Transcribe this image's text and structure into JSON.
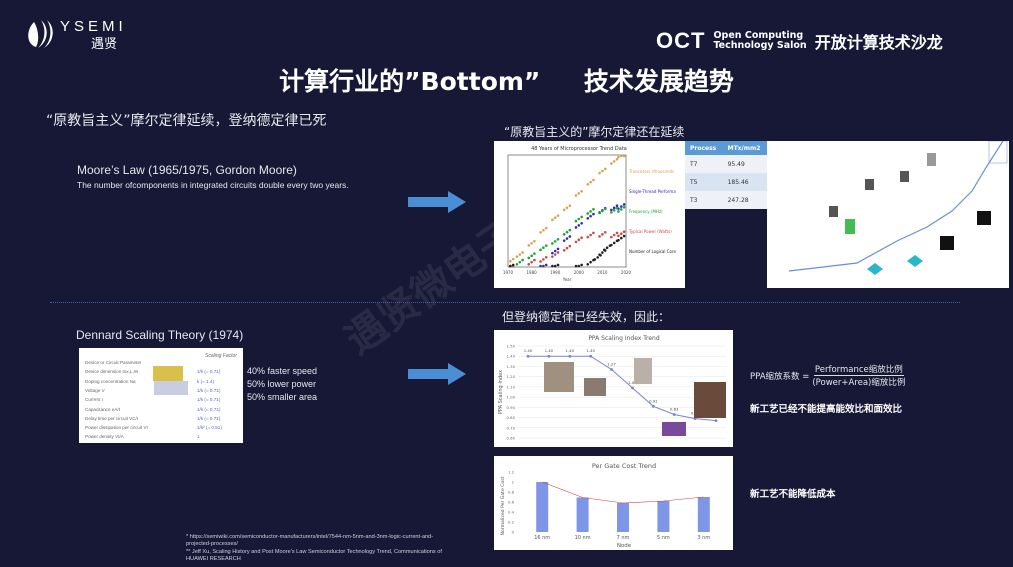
{
  "header": {
    "logo_brand": "YSEMI",
    "logo_cn": "遇贤",
    "oct_logo": "OCT",
    "oct_line1": "Open Computing",
    "oct_line2": "Technology Salon",
    "oct_cn": "开放计算技术沙龙"
  },
  "title": "计算行业的”Bottom”     技术发展趋势",
  "watermark": "遇贤微电子",
  "left": {
    "subtitle": "“原教旨主义”摩尔定律延续，登纳德定律已死",
    "moore_title": "Moore’s Law (1965/1975, Gordon Moore)",
    "moore_desc": "The number ofcomponents in integrated circuits double every two years.",
    "dennard_title": "Dennard Scaling Theory (1974)",
    "dennard_table": {
      "header": "Scaling Factor",
      "rows": [
        [
          "Device or Circuit Parameter",
          ""
        ],
        [
          "Device dimension tox,L,W",
          "1/k (= 0.71)"
        ],
        [
          "Doping concentration Na",
          "k (= 1.4)"
        ],
        [
          "Voltage V",
          "1/k (= 0.71)"
        ],
        [
          "Current I",
          "1/k (= 0.71)"
        ],
        [
          "Capacitance eA/t",
          "1/k (= 0.71)"
        ],
        [
          "Delay time per circuit VC/I",
          "1/k (= 0.71)"
        ],
        [
          "Power dissipation per circuit VI",
          "1/k² (= 0.51)"
        ],
        [
          "Power density VI/A",
          "1"
        ]
      ]
    },
    "benefits": [
      "40% faster speed",
      "50% lower power",
      "50% smaller area"
    ],
    "footnotes": [
      "* https://semiwiki.com/semiconductor-manufacturers/intel/7544-nm-5nm-and-3nm-logic-current-and-projected-processes/",
      "** Jeff Xu, Scaling History and Post Moore’s Law Semiconductor Technology Trend, Communications of HUAWEI RESEARCH"
    ]
  },
  "right": {
    "heading1": "“原教旨主义的”摩尔定律还在延续",
    "density_table": {
      "columns": [
        "Process",
        "MTx/mm2"
      ],
      "rows": [
        [
          "T7",
          "95.49"
        ],
        [
          "T5",
          "185.46"
        ],
        [
          "T3",
          "247.28"
        ]
      ]
    },
    "heading2": "但登纳德定律已经失效，因此：",
    "ppa_formula_left": "PPA缩放系数 =",
    "ppa_formula_num": "Performance缩放比例",
    "ppa_formula_den": "(Power+Area)缩放比例",
    "note1": "新工艺已经不能提高能效比和面效比",
    "note2": "新工艺不能降低成本"
  },
  "colors": {
    "background": "#171836",
    "arrow": "#4a8fd6",
    "table_header": "#5b9bd5",
    "bar": "#7f95e6",
    "ppa_line": "#7a80d8"
  },
  "chart_data": [
    {
      "type": "scatter",
      "title": "48 Years of Microprocessor Trend Data",
      "xlabel": "Year",
      "xlim": [
        1970,
        2020
      ],
      "x_ticks": [
        "1970",
        "1980",
        "1990",
        "2000",
        "2010",
        "2020"
      ],
      "y_scale": "log",
      "ylim": [
        1,
        10000000
      ],
      "series": [
        {
          "name": "Transistors (thousands)",
          "color": "#d4a550",
          "x": [
            1971,
            1975,
            1980,
            1985,
            1990,
            1995,
            2000,
            2005,
            2010,
            2015,
            2018
          ],
          "y": [
            2.3,
            6,
            30,
            200,
            1200,
            5000,
            40000,
            200000,
            1000000,
            4000000,
            10000000
          ]
        },
        {
          "name": "Single-Thread Performance (SpecINT x 10³)",
          "color": "#2b2bc0",
          "x": [
            1985,
            1990,
            1995,
            2000,
            2005,
            2010,
            2015,
            2018
          ],
          "y": [
            1,
            10,
            60,
            400,
            1500,
            3500,
            5000,
            6000
          ]
        },
        {
          "name": "Frequency (MHz)",
          "color": "#22a03a",
          "x": [
            1971,
            1975,
            1980,
            1985,
            1990,
            1995,
            2000,
            2005,
            2010,
            2015,
            2018
          ],
          "y": [
            0.8,
            2,
            5,
            16,
            40,
            150,
            1000,
            3000,
            3200,
            3500,
            4000
          ]
        },
        {
          "name": "Typical Power (Watts)",
          "color": "#c84a4a",
          "x": [
            1971,
            1980,
            1985,
            1990,
            1995,
            2000,
            2005,
            2010,
            2015,
            2018
          ],
          "y": [
            0.8,
            2,
            3,
            6,
            15,
            50,
            100,
            110,
            100,
            120
          ]
        },
        {
          "name": "Number of Logical Cores",
          "color": "#222222",
          "x": [
            1971,
            1990,
            2000,
            2005,
            2008,
            2010,
            2012,
            2015,
            2018
          ],
          "y": [
            1,
            1,
            1,
            2,
            4,
            8,
            16,
            32,
            64
          ]
        }
      ]
    },
    {
      "type": "line",
      "title": "PPA Scaling Index Trend",
      "ylabel": "PPA Scaling Index",
      "ylim": [
        0.6,
        1.5
      ],
      "y_ticks": [
        "1.50",
        "1.40",
        "1.30",
        "1.20",
        "1.10",
        "1.00",
        "0.90",
        "0.80",
        "0.70",
        "0.60"
      ],
      "values": [
        1.4,
        1.4,
        1.4,
        1.4,
        1.27,
        1.09,
        0.91,
        0.83,
        0.79,
        0.77
      ],
      "labels": [
        "1.40",
        "1.40",
        "1.40",
        "1.40",
        "1.27",
        "1.09",
        "0.91",
        "0.83",
        "0.79",
        "0.77"
      ]
    },
    {
      "type": "bar",
      "title": "Per Gate Cost Trend",
      "xlabel": "Node",
      "ylabel": "Normalized Per Gate Cost",
      "categories": [
        "16 nm",
        "10 nm",
        "7 nm",
        "5 nm",
        "3 nm"
      ],
      "values": [
        1.0,
        0.69,
        0.58,
        0.62,
        0.7
      ],
      "ylim": [
        0,
        1.2
      ],
      "y_ticks": [
        "1.2",
        "1",
        "0.8",
        "0.6",
        "0.4",
        "0.2",
        "0"
      ]
    }
  ]
}
